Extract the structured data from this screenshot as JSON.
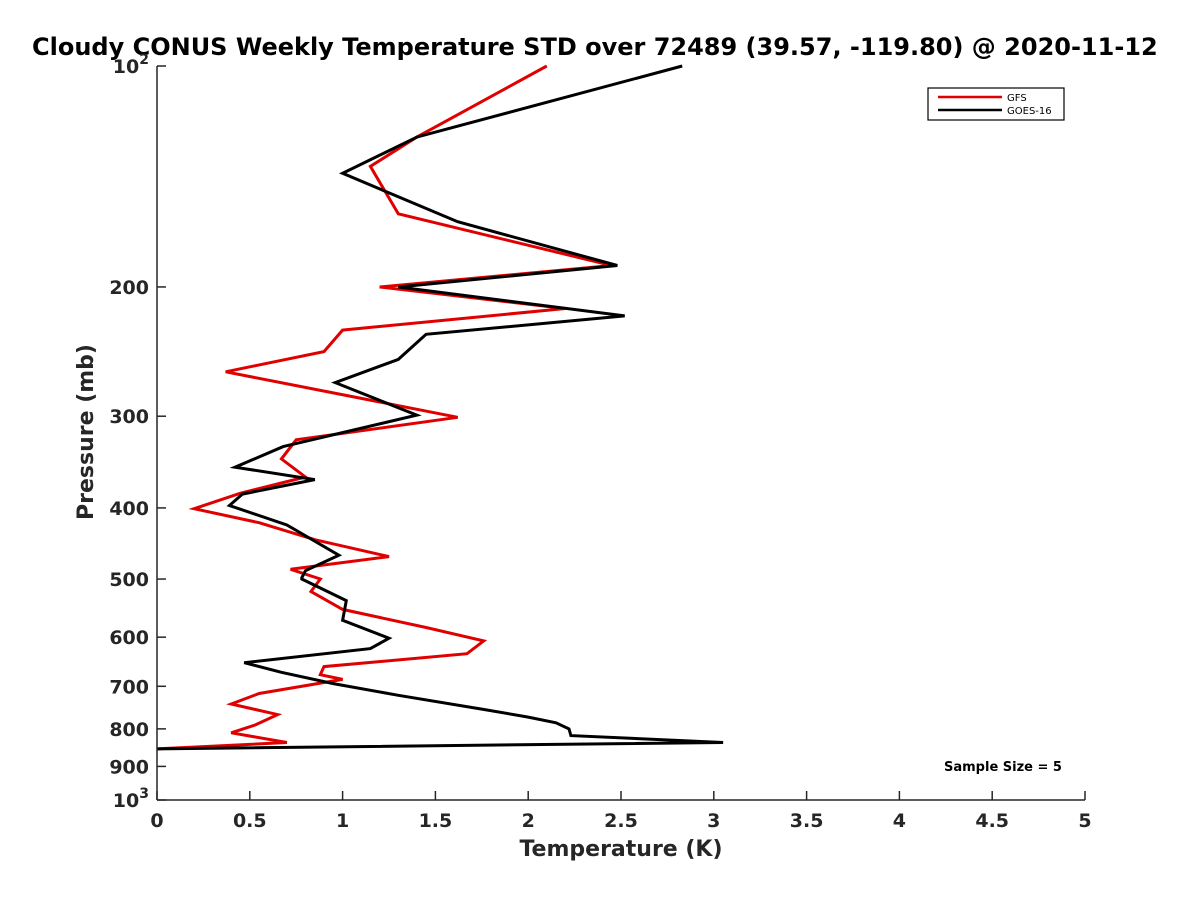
{
  "chart_data": {
    "type": "line",
    "title": "Cloudy CONUS Weekly Temperature STD over 72489 (39.57, -119.80) @ 2020-11-12",
    "xlabel": "Temperature (K)",
    "ylabel": "Pressure (mb)",
    "xlim": [
      0,
      5
    ],
    "ylim": [
      100,
      1000
    ],
    "y_scale": "log",
    "y_reversed": true,
    "grid": false,
    "legend_position": "top-right",
    "x_ticks": [
      {
        "value": 0,
        "label": "0"
      },
      {
        "value": 0.5,
        "label": "0.5"
      },
      {
        "value": 1,
        "label": "1"
      },
      {
        "value": 1.5,
        "label": "1.5"
      },
      {
        "value": 2,
        "label": "2"
      },
      {
        "value": 2.5,
        "label": "2.5"
      },
      {
        "value": 3,
        "label": "3"
      },
      {
        "value": 3.5,
        "label": "3.5"
      },
      {
        "value": 4,
        "label": "4"
      },
      {
        "value": 4.5,
        "label": "4.5"
      },
      {
        "value": 5,
        "label": "5"
      }
    ],
    "y_ticks": [
      {
        "value": 100,
        "base": "10",
        "exp": "2"
      },
      {
        "value": 200,
        "label": "200"
      },
      {
        "value": 300,
        "label": "300"
      },
      {
        "value": 400,
        "label": "400"
      },
      {
        "value": 500,
        "label": "500"
      },
      {
        "value": 600,
        "label": "600"
      },
      {
        "value": 700,
        "label": "700"
      },
      {
        "value": 800,
        "label": "800"
      },
      {
        "value": 900,
        "label": "900"
      },
      {
        "value": 1000,
        "base": "10",
        "exp": "3"
      }
    ],
    "annotation": "Sample Size = 5",
    "series": [
      {
        "name": "GFS",
        "color": "#e00000",
        "points": [
          [
            2.1,
            100
          ],
          [
            1.4,
            125
          ],
          [
            1.15,
            137
          ],
          [
            1.3,
            159
          ],
          [
            2.45,
            187
          ],
          [
            1.2,
            200
          ],
          [
            2.2,
            214
          ],
          [
            1.0,
            229
          ],
          [
            0.9,
            245
          ],
          [
            0.37,
            261
          ],
          [
            1.62,
            301
          ],
          [
            0.75,
            323
          ],
          [
            0.67,
            343
          ],
          [
            0.8,
            363
          ],
          [
            0.45,
            382
          ],
          [
            0.2,
            401
          ],
          [
            0.55,
            419
          ],
          [
            0.85,
            442
          ],
          [
            1.25,
            466
          ],
          [
            0.72,
            485
          ],
          [
            0.88,
            500
          ],
          [
            0.83,
            520
          ],
          [
            1.0,
            550
          ],
          [
            1.45,
            582
          ],
          [
            1.76,
            607
          ],
          [
            1.67,
            632
          ],
          [
            0.9,
            658
          ],
          [
            0.88,
            675
          ],
          [
            1.0,
            685
          ],
          [
            0.55,
            716
          ],
          [
            0.4,
            740
          ],
          [
            0.65,
            765
          ],
          [
            0.53,
            790
          ],
          [
            0.4,
            810
          ],
          [
            0.7,
            835
          ],
          [
            0.0,
            852
          ]
        ]
      },
      {
        "name": "GOES-16",
        "color": "#000000",
        "points": [
          [
            2.83,
            100
          ],
          [
            1.4,
            125
          ],
          [
            1.0,
            140
          ],
          [
            1.62,
            163
          ],
          [
            2.48,
            187
          ],
          [
            1.3,
            200
          ],
          [
            2.52,
            219
          ],
          [
            1.45,
            232
          ],
          [
            1.3,
            251
          ],
          [
            0.96,
            270
          ],
          [
            1.4,
            299
          ],
          [
            0.68,
            330
          ],
          [
            0.42,
            352
          ],
          [
            0.85,
            366
          ],
          [
            0.46,
            383
          ],
          [
            0.39,
            397
          ],
          [
            0.7,
            422
          ],
          [
            0.98,
            464
          ],
          [
            0.8,
            487
          ],
          [
            0.78,
            498
          ],
          [
            0.78,
            500
          ],
          [
            1.02,
            535
          ],
          [
            1.0,
            569
          ],
          [
            1.25,
            602
          ],
          [
            1.15,
            622
          ],
          [
            0.47,
            650
          ],
          [
            0.67,
            670
          ],
          [
            0.95,
            694
          ],
          [
            1.3,
            720
          ],
          [
            1.75,
            752
          ],
          [
            2.0,
            771
          ],
          [
            2.15,
            785
          ],
          [
            2.22,
            800
          ],
          [
            2.23,
            817
          ],
          [
            3.05,
            835
          ],
          [
            0.0,
            852
          ]
        ]
      }
    ]
  }
}
